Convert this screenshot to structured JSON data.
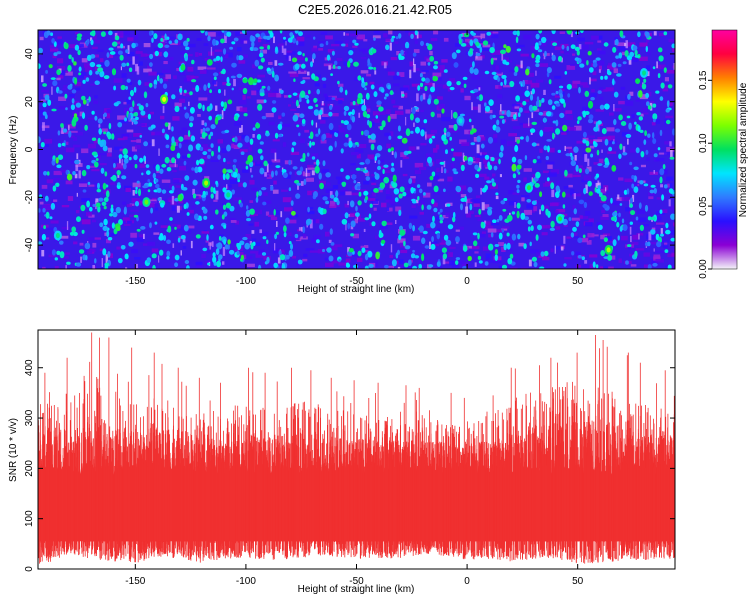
{
  "figure": {
    "title": "C2E5.2026.016.21.42.R05"
  },
  "chart_data": [
    {
      "type": "heatmap",
      "title": "C2E5.2026.016.21.42.R05",
      "xlabel": "Height of straight line (km)",
      "ylabel": "Frequency (Hz)",
      "xlim": [
        -194,
        94
      ],
      "ylim": [
        -50,
        50
      ],
      "x_ticks": [
        -150,
        -100,
        -50,
        0,
        50
      ],
      "x_tick_labels": [
        "-150",
        "-100",
        "-50",
        "0",
        "50"
      ],
      "y_ticks": [
        -40,
        -20,
        0,
        20,
        40
      ],
      "y_tick_labels": [
        "-40",
        "-20",
        "0",
        "20",
        "40"
      ],
      "colorbar": {
        "label": "Normalized spectral amplitude",
        "range": [
          0.0,
          0.19
        ],
        "ticks": [
          0.0,
          0.05,
          0.1,
          0.15
        ],
        "tick_labels": [
          "0.00",
          "0.05",
          "0.10",
          "0.15"
        ],
        "colormap": [
          "#f4f4f8",
          "#8a00d4",
          "#2a10ff",
          "#2f7bff",
          "#00e5ff",
          "#00e060",
          "#7cff00",
          "#ffff00",
          "#ff8000",
          "#ff0040",
          "#ff00a0"
        ]
      },
      "typical_amplitude_range": [
        0.02,
        0.05
      ],
      "hotspots": [
        {
          "x": -145,
          "y": -22,
          "v": 0.11
        },
        {
          "x": -118,
          "y": -14,
          "v": 0.12
        },
        {
          "x": -137,
          "y": 21,
          "v": 0.13
        },
        {
          "x": 42,
          "y": -29,
          "v": 0.1
        },
        {
          "x": 28,
          "y": -16,
          "v": 0.1
        },
        {
          "x": 64,
          "y": -42,
          "v": 0.12
        },
        {
          "x": -185,
          "y": -36,
          "v": 0.09
        },
        {
          "x": -108,
          "y": -19,
          "v": 0.09
        },
        {
          "x": -3,
          "y": 12,
          "v": 0.08
        },
        {
          "x": 80,
          "y": 32,
          "v": 0.09
        }
      ],
      "grid": false,
      "background_color": "#3a18e8"
    },
    {
      "type": "bar",
      "xlabel": "Height of straight line (km)",
      "ylabel": "SNR (10 * v/v)",
      "xlim": [
        -194,
        94
      ],
      "ylim": [
        0,
        475
      ],
      "x_ticks": [
        -150,
        -100,
        -50,
        0,
        50
      ],
      "x_tick_labels": [
        "-150",
        "-100",
        "-50",
        "0",
        "50"
      ],
      "y_ticks": [
        0,
        100,
        200,
        300,
        400
      ],
      "y_tick_labels": [
        "0",
        "100",
        "200",
        "300",
        "400"
      ],
      "color": "#f03030",
      "x_samples": [
        -190,
        -180,
        -170,
        -160,
        -150,
        -140,
        -130,
        -120,
        -110,
        -100,
        -90,
        -80,
        -70,
        -60,
        -50,
        -40,
        -30,
        -20,
        -10,
        0,
        10,
        20,
        30,
        40,
        50,
        60,
        70,
        80,
        90
      ],
      "envelope_upper": [
        330,
        360,
        395,
        370,
        330,
        350,
        320,
        310,
        320,
        330,
        325,
        330,
        335,
        320,
        310,
        300,
        305,
        300,
        295,
        290,
        300,
        330,
        360,
        365,
        380,
        380,
        345,
        330,
        320
      ],
      "peak_values": [
        390,
        420,
        470,
        460,
        440,
        430,
        400,
        380,
        370,
        400,
        390,
        400,
        395,
        380,
        375,
        370,
        365,
        360,
        350,
        340,
        345,
        400,
        405,
        420,
        430,
        465,
        430,
        410,
        395
      ],
      "envelope_lower": [
        10,
        30,
        20,
        15,
        10,
        25,
        20,
        12,
        20,
        22,
        18,
        20,
        25,
        24,
        20,
        22,
        20,
        30,
        25,
        18,
        20,
        15,
        20,
        20,
        10,
        12,
        15,
        18,
        20
      ],
      "solid_band": [
        55,
        200
      ],
      "grid": false
    }
  ]
}
